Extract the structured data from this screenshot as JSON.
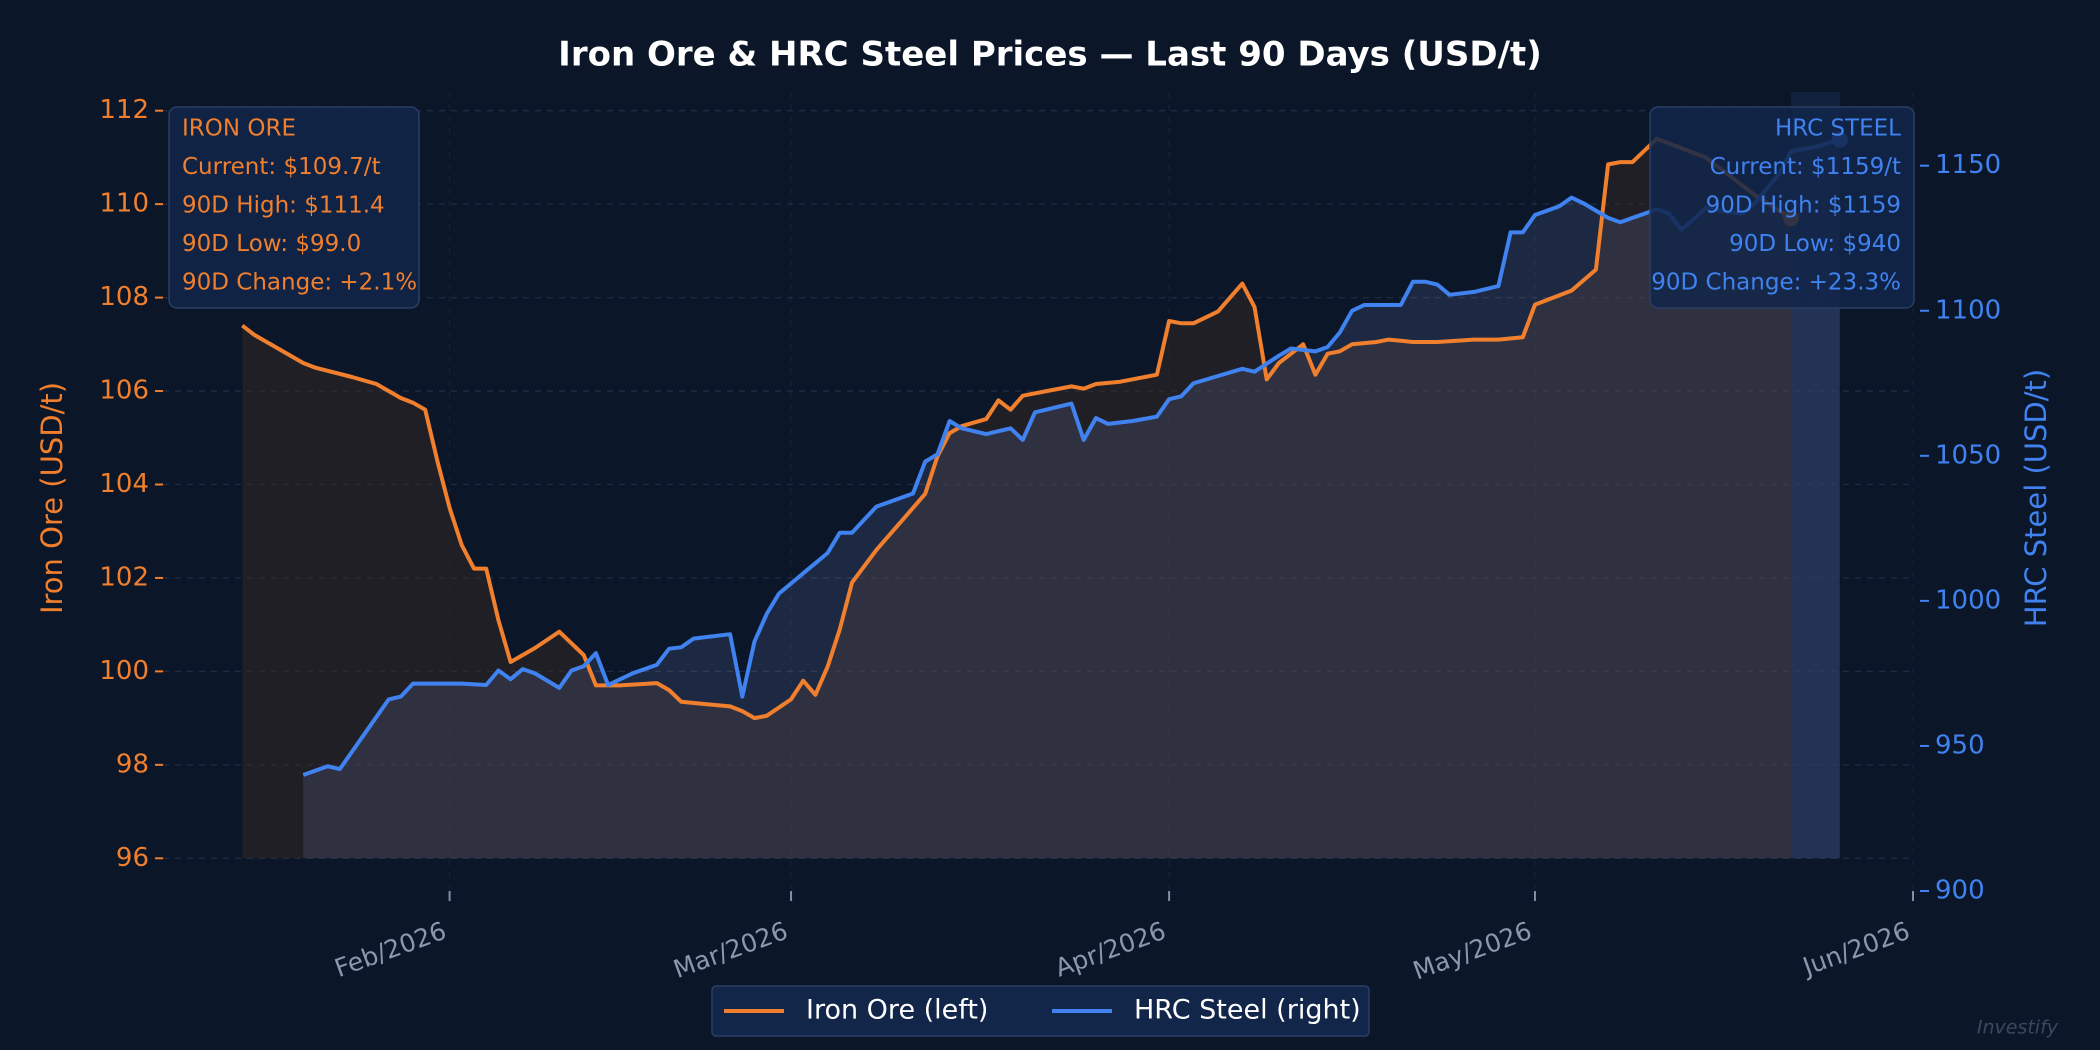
{
  "chart_data": {
    "type": "line",
    "title": "Iron Ore & HRC Steel Prices — Last 90 Days (USD/t)",
    "ylabel": "Iron Ore (USD/t)",
    "y2label": "HRC Steel (USD/t)",
    "xlim": [
      7.5,
      151
    ],
    "xticks": [
      {
        "value": 31,
        "label": "Feb/2026"
      },
      {
        "value": 59,
        "label": "Mar/2026"
      },
      {
        "value": 90,
        "label": "Apr/2026"
      },
      {
        "value": 120,
        "label": "May/2026"
      },
      {
        "value": 151,
        "label": "Jun/2026"
      }
    ],
    "ylim": [
      95.3,
      112.4
    ],
    "yticks": [
      96,
      98,
      100,
      102,
      104,
      106,
      108,
      110,
      112
    ],
    "y2lim": [
      900,
      1175.4
    ],
    "y2ticks": [
      900,
      950,
      1000,
      1050,
      1100,
      1150
    ],
    "grid": true,
    "legend": "bottom",
    "series": [
      {
        "name": "Iron Ore (left)",
        "color": "#f07f2e",
        "axis": "y",
        "x": [
          14,
          15,
          17,
          19,
          20,
          23,
          25,
          26,
          27,
          28,
          29,
          30,
          31,
          32,
          33,
          34,
          35,
          36,
          38,
          40,
          42,
          43,
          45,
          48,
          49,
          50,
          52,
          54,
          55,
          56,
          57,
          59,
          60,
          61,
          62,
          63,
          64,
          66,
          68,
          70,
          71,
          72,
          73,
          75,
          76,
          77,
          78,
          80,
          82,
          83,
          84,
          86,
          88,
          89,
          90,
          91,
          92,
          94,
          96,
          97,
          98,
          99,
          101,
          102,
          103,
          104,
          105,
          107,
          108,
          110,
          112,
          115,
          117,
          119,
          120,
          123,
          125,
          126,
          127,
          128,
          130,
          131,
          132,
          134,
          136,
          138,
          141
        ],
        "values": [
          107.4,
          107.2,
          106.9,
          106.6,
          106.5,
          106.3,
          106.15,
          106.0,
          105.85,
          105.75,
          105.6,
          104.5,
          103.5,
          102.7,
          102.2,
          102.2,
          101.1,
          100.2,
          100.5,
          100.85,
          100.35,
          99.7,
          99.7,
          99.75,
          99.6,
          99.35,
          99.3,
          99.25,
          99.15,
          99.0,
          99.05,
          99.4,
          99.8,
          99.5,
          100.1,
          100.9,
          101.9,
          102.6,
          103.2,
          103.8,
          104.6,
          105.1,
          105.25,
          105.4,
          105.8,
          105.6,
          105.9,
          106.0,
          106.1,
          106.05,
          106.15,
          106.2,
          106.3,
          106.35,
          107.5,
          107.45,
          107.45,
          107.7,
          108.3,
          107.8,
          106.25,
          106.6,
          107.0,
          106.35,
          106.8,
          106.85,
          107.0,
          107.05,
          107.1,
          107.05,
          107.05,
          107.1,
          107.1,
          107.15,
          107.85,
          108.15,
          108.6,
          110.85,
          110.9,
          110.9,
          111.4,
          111.3,
          111.2,
          111.0,
          110.6,
          110.2,
          109.7
        ]
      },
      {
        "name": "HRC Steel (right)",
        "color": "#3f82f0",
        "axis": "y2",
        "x": [
          19,
          20,
          21,
          22,
          24,
          26,
          27,
          28,
          30,
          32,
          34,
          35,
          36,
          37,
          38,
          40,
          41,
          42,
          43,
          44,
          46,
          48,
          49,
          50,
          51,
          54,
          55,
          56,
          57,
          58,
          60,
          62,
          63,
          64,
          65,
          66,
          68,
          69,
          70,
          71,
          72,
          73,
          75,
          77,
          78,
          79,
          80,
          82,
          83,
          84,
          85,
          87,
          89,
          90,
          91,
          92,
          94,
          96,
          97,
          99,
          100,
          102,
          103,
          104,
          105,
          106,
          108,
          109,
          110,
          111,
          112,
          113,
          115,
          117,
          118,
          119,
          120,
          122,
          123,
          124,
          126,
          127,
          128,
          130,
          131,
          132,
          133,
          134,
          136,
          137,
          138,
          140,
          141,
          143,
          145
        ],
        "values": [
          940,
          941.5,
          943,
          942,
          954,
          966,
          967,
          971.5,
          971.5,
          971.5,
          971,
          976,
          973,
          976.5,
          975,
          970,
          976,
          977.5,
          982,
          971,
          975,
          978,
          983.5,
          984,
          987,
          988.5,
          967,
          986,
          995.5,
          1002.5,
          1009.5,
          1016.5,
          1023.5,
          1023.5,
          1028,
          1032.5,
          1035.5,
          1037,
          1048,
          1050.5,
          1062,
          1059.5,
          1057.5,
          1059.5,
          1055.5,
          1065,
          1066,
          1068,
          1055.5,
          1063,
          1061,
          1062,
          1063.5,
          1069.5,
          1070.5,
          1075,
          1077.5,
          1080,
          1079,
          1084.5,
          1087,
          1086,
          1087.5,
          1092.5,
          1100,
          1102,
          1102,
          1102,
          1110,
          1110,
          1109,
          1105.5,
          1106.5,
          1108.5,
          1127,
          1127,
          1133,
          1136,
          1139,
          1137,
          1132,
          1130.5,
          1132,
          1135,
          1133.5,
          1128,
          1131.5,
          1135.5,
          1134,
          1133.5,
          1137,
          1147,
          1155,
          1156.5,
          1159
        ]
      }
    ],
    "stat_boxes": [
      {
        "lines": [
          "IRON ORE",
          "Current: $109.7/t",
          "90D High: $111.4",
          "90D Low: $99.0",
          "90D Change: +2.1%"
        ]
      },
      {
        "lines": [
          "HRC STEEL",
          "Current: $1159/t",
          "90D High: $1159",
          "90D Low: $940",
          "90D Change: +23.3%"
        ]
      }
    ],
    "watermark": "Investify"
  }
}
